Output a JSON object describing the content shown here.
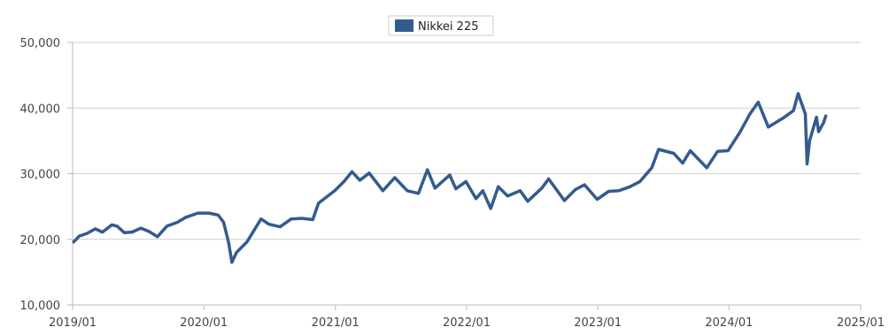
{
  "chart_data": {
    "type": "line",
    "legend": {
      "placement": "top-center"
    },
    "grid": {
      "y": true,
      "x": false
    },
    "x_axis": {
      "type": "time",
      "range": [
        "2019-01",
        "2025-01"
      ],
      "tick_labels": [
        "2019/01",
        "2020/01",
        "2021/01",
        "2022/01",
        "2023/01",
        "2024/01",
        "2025/01"
      ]
    },
    "y_axis": {
      "range": [
        10000,
        50000
      ],
      "tick_values": [
        10000,
        20000,
        30000,
        40000,
        50000
      ],
      "tick_labels": [
        "10,000",
        "20,000",
        "30,000",
        "40,000",
        "50,000"
      ]
    },
    "series": [
      {
        "name": "Nikkei 225",
        "color": "#335b8e",
        "points": [
          [
            "2019-01-04",
            19600
          ],
          [
            "2019-01-20",
            20500
          ],
          [
            "2019-02-10",
            20900
          ],
          [
            "2019-03-05",
            21600
          ],
          [
            "2019-03-25",
            21100
          ],
          [
            "2019-04-20",
            22200
          ],
          [
            "2019-05-05",
            22000
          ],
          [
            "2019-05-25",
            21000
          ],
          [
            "2019-06-15",
            21100
          ],
          [
            "2019-07-10",
            21700
          ],
          [
            "2019-08-01",
            21200
          ],
          [
            "2019-08-25",
            20400
          ],
          [
            "2019-09-20",
            22000
          ],
          [
            "2019-10-20",
            22600
          ],
          [
            "2019-11-10",
            23300
          ],
          [
            "2019-12-15",
            24000
          ],
          [
            "2020-01-15",
            24000
          ],
          [
            "2020-02-10",
            23700
          ],
          [
            "2020-02-25",
            22600
          ],
          [
            "2020-03-10",
            19500
          ],
          [
            "2020-03-19",
            16500
          ],
          [
            "2020-04-01",
            18000
          ],
          [
            "2020-04-30",
            19600
          ],
          [
            "2020-06-08",
            23100
          ],
          [
            "2020-06-30",
            22300
          ],
          [
            "2020-07-31",
            21900
          ],
          [
            "2020-08-31",
            23100
          ],
          [
            "2020-09-30",
            23200
          ],
          [
            "2020-10-30",
            23000
          ],
          [
            "2020-11-15",
            25500
          ],
          [
            "2020-12-30",
            27400
          ],
          [
            "2021-01-25",
            28800
          ],
          [
            "2021-02-16",
            30300
          ],
          [
            "2021-03-10",
            29000
          ],
          [
            "2021-04-05",
            30100
          ],
          [
            "2021-05-13",
            27400
          ],
          [
            "2021-06-15",
            29400
          ],
          [
            "2021-07-20",
            27400
          ],
          [
            "2021-08-20",
            27000
          ],
          [
            "2021-09-14",
            30600
          ],
          [
            "2021-10-05",
            27800
          ],
          [
            "2021-11-15",
            29800
          ],
          [
            "2021-12-02",
            27700
          ],
          [
            "2021-12-30",
            28800
          ],
          [
            "2022-01-27",
            26200
          ],
          [
            "2022-02-15",
            27400
          ],
          [
            "2022-03-09",
            24700
          ],
          [
            "2022-03-30",
            28000
          ],
          [
            "2022-04-25",
            26600
          ],
          [
            "2022-05-30",
            27400
          ],
          [
            "2022-06-20",
            25800
          ],
          [
            "2022-07-29",
            27800
          ],
          [
            "2022-08-17",
            29200
          ],
          [
            "2022-09-30",
            25900
          ],
          [
            "2022-10-31",
            27600
          ],
          [
            "2022-11-25",
            28300
          ],
          [
            "2022-12-30",
            26100
          ],
          [
            "2023-01-31",
            27300
          ],
          [
            "2023-02-28",
            27400
          ],
          [
            "2023-03-31",
            28000
          ],
          [
            "2023-04-28",
            28800
          ],
          [
            "2023-05-31",
            30900
          ],
          [
            "2023-06-19",
            33700
          ],
          [
            "2023-07-31",
            33100
          ],
          [
            "2023-08-25",
            31600
          ],
          [
            "2023-09-15",
            33500
          ],
          [
            "2023-10-31",
            30900
          ],
          [
            "2023-11-30",
            33400
          ],
          [
            "2023-12-29",
            33500
          ],
          [
            "2024-01-31",
            36300
          ],
          [
            "2024-02-29",
            39200
          ],
          [
            "2024-03-22",
            40900
          ],
          [
            "2024-04-19",
            37100
          ],
          [
            "2024-05-31",
            38500
          ],
          [
            "2024-06-28",
            39600
          ],
          [
            "2024-07-11",
            42200
          ],
          [
            "2024-07-31",
            39100
          ],
          [
            "2024-08-05",
            31500
          ],
          [
            "2024-08-12",
            35000
          ],
          [
            "2024-08-31",
            38600
          ],
          [
            "2024-09-06",
            36400
          ],
          [
            "2024-09-20",
            37800
          ],
          [
            "2024-09-26",
            38800
          ]
        ]
      }
    ]
  }
}
